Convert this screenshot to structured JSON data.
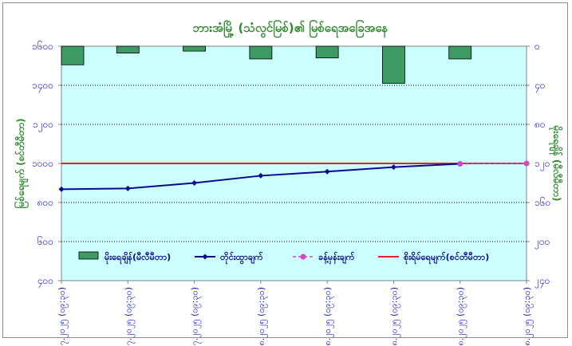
{
  "chart_data": {
    "type": "bar+line",
    "title": "ဘားအံမြို့ (သံလွင်မြစ်)၏ မြစ်ရေအခြေအနေ",
    "ylabel_left": "မြစ်ရေမျက် (စင်တီမီတာ)",
    "ylabel_right": "မိုးရေချိန် (မီလီမီတာ)",
    "categories": [
      "၂၉.၇.၂၀၂၅ (၀၉:၃၀)",
      "၃၀.၇.၂၀၂၅ (၀၉:၃၀)",
      "၃၁.၇.၂၀၂၅ (၀၉:၃၀)",
      "၁.၈.၂၀၂၅ (၀၉:၃၀)",
      "၂.၈.၂၀၂၅ (၀၉:၃၀)",
      "၃.၈.၂၀၂၅ (၀၉:၃၀)",
      "၄.၈.၂၀၂၅ (၀၉:၃၀)",
      "၅.၈.၂၀၂၅ (၀၉:၃၀)"
    ],
    "y_left": {
      "min": 400,
      "max": 1600,
      "ticks": [
        400,
        600,
        800,
        1000,
        1200,
        1400,
        1600
      ],
      "tick_labels": [
        "၄၀၀",
        "၆၀၀",
        "၈၀၀",
        "၁၀၀၀",
        "၁၂၀၀",
        "၁၄၀၀",
        "၁၆၀၀"
      ]
    },
    "y_right": {
      "min": 0,
      "max": 240,
      "ticks": [
        0,
        40,
        80,
        120,
        160,
        200,
        240
      ],
      "tick_labels": [
        "၀",
        "၄၀",
        "၈၀",
        "၁၂၀",
        "၁၆၀",
        "၂၀၀",
        "၂၄၀"
      ],
      "inverted": true
    },
    "series": [
      {
        "name": "မိုးရေချိန်(မီလီမီတာ)",
        "type": "bar",
        "axis": "right",
        "color": "#3c9a62",
        "values": [
          19,
          7,
          5,
          13,
          12,
          38,
          13,
          null
        ]
      },
      {
        "name": "တိုင်းထွာချက်",
        "type": "line",
        "axis": "left",
        "color": "#0a0a8c",
        "marker": "diamond",
        "values": [
          868,
          872,
          900,
          937,
          958,
          981,
          998,
          null
        ]
      },
      {
        "name": "ခန့်မှန်းချက်",
        "type": "line",
        "axis": "left",
        "color": "#e040c8",
        "dashed": true,
        "marker": "circle",
        "values": [
          null,
          null,
          null,
          null,
          null,
          null,
          998,
          1000
        ]
      },
      {
        "name": "စိုးရိမ်ရေမျက်(စင်တီမီတာ)",
        "type": "hline",
        "axis": "left",
        "color": "#e8202a",
        "value": 1000
      }
    ],
    "grid": true,
    "legend_position": "bottom-inside",
    "plot_background": "#ccffff"
  }
}
